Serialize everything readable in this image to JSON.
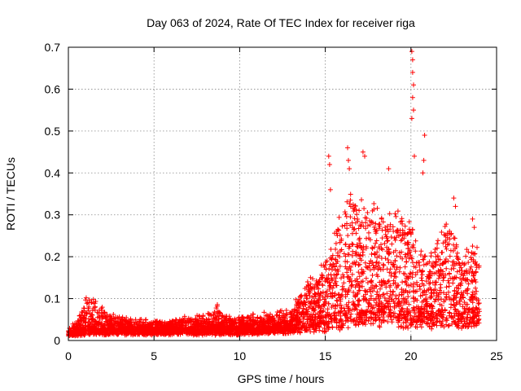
{
  "chart_data": {
    "type": "scatter",
    "title": "Day 063 of 2024, Rate Of TEC Index for receiver riga",
    "xlabel": "GPS time / hours",
    "ylabel": "ROTI / TECUs",
    "xlim": [
      0,
      25
    ],
    "ylim": [
      0,
      0.7
    ],
    "x_ticks": [
      0,
      5,
      10,
      15,
      20,
      25
    ],
    "x_tick_labels": [
      "0",
      "5",
      "10",
      "15",
      "20",
      "25"
    ],
    "y_ticks": [
      0,
      0.1,
      0.2,
      0.3,
      0.4,
      0.5,
      0.6,
      0.7
    ],
    "y_tick_labels": [
      "0",
      "0.1",
      "0.2",
      "0.3",
      "0.4",
      "0.5",
      "0.6",
      "0.7"
    ],
    "grid": true,
    "marker": "+",
    "marker_color": "#ff0000",
    "data_extent_hours": [
      0,
      24
    ],
    "envelope": {
      "description": "Approximate upper envelope of the dense scatter (hour, ROTI)",
      "x": [
        0,
        0.5,
        1.0,
        1.5,
        2.0,
        2.5,
        3,
        4,
        5,
        6,
        7,
        8,
        8.7,
        9,
        10,
        11,
        12,
        13,
        13.5,
        14,
        14.5,
        15,
        15.5,
        16,
        16.5,
        17,
        17.5,
        18,
        18.5,
        19,
        19.5,
        20,
        20.5,
        21,
        21.5,
        22,
        22.5,
        23,
        23.5,
        24
      ],
      "y": [
        0.03,
        0.05,
        0.1,
        0.11,
        0.08,
        0.07,
        0.06,
        0.05,
        0.05,
        0.05,
        0.06,
        0.06,
        0.09,
        0.06,
        0.06,
        0.07,
        0.07,
        0.08,
        0.11,
        0.16,
        0.15,
        0.2,
        0.26,
        0.32,
        0.35,
        0.33,
        0.36,
        0.33,
        0.3,
        0.33,
        0.3,
        0.28,
        0.22,
        0.22,
        0.24,
        0.3,
        0.27,
        0.2,
        0.26,
        0.22
      ]
    },
    "baseline": {
      "description": "Approximate typical background level (hour, ROTI)",
      "x": [
        0,
        2,
        4,
        6,
        8,
        10,
        12,
        13,
        14,
        15,
        16,
        17,
        18,
        19,
        20,
        21,
        22,
        23,
        24
      ],
      "y": [
        0.02,
        0.025,
        0.025,
        0.025,
        0.025,
        0.025,
        0.03,
        0.03,
        0.035,
        0.04,
        0.05,
        0.06,
        0.06,
        0.06,
        0.05,
        0.05,
        0.05,
        0.05,
        0.05
      ]
    },
    "spikes": [
      {
        "x": 15.2,
        "y": 0.44
      },
      {
        "x": 15.25,
        "y": 0.42
      },
      {
        "x": 15.3,
        "y": 0.36
      },
      {
        "x": 16.3,
        "y": 0.46
      },
      {
        "x": 16.35,
        "y": 0.43
      },
      {
        "x": 16.4,
        "y": 0.41
      },
      {
        "x": 17.2,
        "y": 0.45
      },
      {
        "x": 17.3,
        "y": 0.44
      },
      {
        "x": 18.7,
        "y": 0.41
      },
      {
        "x": 20.05,
        "y": 0.69
      },
      {
        "x": 20.1,
        "y": 0.67
      },
      {
        "x": 20.1,
        "y": 0.64
      },
      {
        "x": 20.15,
        "y": 0.61
      },
      {
        "x": 20.1,
        "y": 0.58
      },
      {
        "x": 20.15,
        "y": 0.55
      },
      {
        "x": 20.05,
        "y": 0.53
      },
      {
        "x": 20.2,
        "y": 0.44
      },
      {
        "x": 20.8,
        "y": 0.49
      },
      {
        "x": 20.75,
        "y": 0.43
      },
      {
        "x": 20.7,
        "y": 0.4
      },
      {
        "x": 22.5,
        "y": 0.34
      },
      {
        "x": 22.6,
        "y": 0.32
      },
      {
        "x": 23.6,
        "y": 0.29
      },
      {
        "x": 23.7,
        "y": 0.27
      }
    ]
  }
}
